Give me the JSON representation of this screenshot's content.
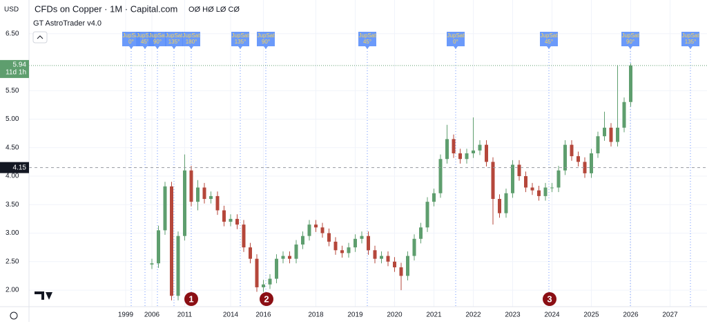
{
  "header": {
    "currency": "USD",
    "title": "CFDs on Copper · 1M · Capital.com",
    "ohlc": "OØ HØ LØ CØ",
    "indicator": "GT AstroTrader v4.0"
  },
  "chart_data": {
    "type": "candlestick",
    "categories": [
      "1999",
      null,
      null,
      null,
      "2006",
      null,
      null,
      null,
      null,
      "2011",
      null,
      null,
      null,
      null,
      null,
      null,
      "2014",
      null,
      null,
      null,
      null,
      "2016",
      null,
      null,
      null,
      null,
      null,
      null,
      null,
      "2018",
      null,
      null,
      null,
      null,
      null,
      "2019",
      null,
      null,
      null,
      null,
      null,
      "2020",
      null,
      null,
      null,
      null,
      null,
      "2021",
      null,
      null,
      null,
      null,
      null,
      "2022",
      null,
      null,
      null,
      null,
      null,
      "2023",
      null,
      null,
      null,
      null,
      null,
      "2024",
      null,
      null,
      null,
      null,
      null,
      "2025",
      null,
      null,
      null,
      null,
      null,
      "2026",
      null,
      null,
      null,
      null,
      null,
      "2027",
      null,
      null,
      null,
      null,
      null
    ],
    "open": [
      null,
      null,
      null,
      null,
      2.45,
      2.47,
      3.05,
      3.82,
      1.9,
      2.95,
      4.1,
      3.55,
      3.8,
      3.6,
      3.65,
      3.4,
      3.2,
      3.25,
      3.15,
      2.75,
      2.55,
      2.05,
      2.1,
      2.2,
      2.55,
      2.6,
      2.55,
      2.8,
      2.95,
      3.15,
      3.1,
      3.0,
      2.85,
      2.7,
      2.65,
      2.75,
      2.9,
      2.95,
      2.7,
      2.55,
      2.6,
      2.5,
      2.4,
      2.25,
      2.6,
      2.9,
      3.1,
      3.55,
      3.7,
      4.3,
      4.65,
      4.4,
      4.3,
      4.4,
      4.45,
      4.55,
      4.25,
      3.6,
      3.35,
      3.7,
      4.2,
      4.0,
      3.8,
      3.75,
      3.65,
      3.8,
      3.8,
      4.1,
      4.55,
      4.35,
      4.25,
      4.05,
      4.4,
      4.7,
      4.85,
      4.6,
      4.85,
      5.3,
      null,
      null,
      null,
      null,
      null,
      null,
      null,
      null,
      null,
      null,
      null
    ],
    "high": [
      null,
      null,
      null,
      null,
      2.55,
      3.13,
      3.9,
      3.9,
      3.03,
      4.38,
      4.18,
      3.93,
      3.88,
      3.73,
      3.73,
      3.48,
      3.33,
      3.33,
      3.23,
      2.83,
      2.63,
      2.18,
      2.28,
      2.63,
      2.68,
      2.68,
      2.88,
      3.03,
      3.23,
      3.23,
      3.18,
      3.08,
      2.93,
      2.78,
      2.83,
      2.98,
      3.03,
      3.03,
      2.78,
      2.68,
      2.68,
      2.58,
      2.48,
      2.68,
      2.98,
      3.18,
      3.63,
      3.78,
      4.38,
      4.9,
      4.73,
      4.48,
      4.48,
      5.03,
      4.63,
      4.63,
      4.33,
      3.68,
      3.78,
      4.28,
      4.28,
      4.08,
      3.88,
      3.83,
      3.88,
      3.88,
      4.18,
      4.63,
      4.63,
      4.43,
      4.33,
      4.48,
      4.78,
      5.13,
      4.93,
      5.95,
      5.38,
      5.98,
      null,
      null,
      null,
      null,
      null,
      null,
      null,
      null,
      null,
      null,
      null
    ],
    "low": [
      null,
      null,
      null,
      null,
      2.37,
      2.39,
      2.97,
      1.82,
      1.82,
      2.87,
      3.47,
      3.4,
      3.52,
      3.52,
      3.32,
      3.12,
      3.12,
      3.07,
      2.67,
      2.47,
      1.97,
      1.97,
      2.02,
      2.12,
      2.47,
      2.47,
      2.47,
      2.72,
      2.87,
      3.02,
      2.92,
      2.77,
      2.62,
      2.57,
      2.57,
      2.67,
      2.82,
      2.62,
      2.47,
      2.47,
      2.42,
      2.32,
      2.0,
      2.17,
      2.52,
      2.82,
      3.02,
      3.47,
      3.62,
      4.22,
      4.32,
      4.22,
      4.22,
      4.32,
      4.37,
      4.17,
      3.15,
      3.27,
      3.27,
      3.62,
      3.92,
      3.72,
      3.67,
      3.57,
      3.57,
      3.72,
      3.72,
      4.02,
      4.27,
      4.17,
      3.97,
      3.97,
      4.32,
      4.62,
      4.52,
      4.52,
      4.77,
      5.22,
      null,
      null,
      null,
      null,
      null,
      null,
      null,
      null,
      null,
      null,
      null
    ],
    "close": [
      null,
      null,
      null,
      null,
      2.47,
      3.05,
      3.82,
      1.9,
      2.95,
      4.1,
      3.55,
      3.8,
      3.6,
      3.65,
      3.4,
      3.2,
      3.25,
      3.15,
      2.75,
      2.55,
      2.05,
      2.1,
      2.2,
      2.55,
      2.6,
      2.55,
      2.8,
      2.95,
      3.15,
      3.1,
      3.0,
      2.85,
      2.7,
      2.65,
      2.75,
      2.9,
      2.95,
      2.7,
      2.55,
      2.6,
      2.5,
      2.4,
      2.25,
      2.6,
      2.9,
      3.1,
      3.55,
      3.7,
      4.3,
      4.65,
      4.4,
      4.3,
      4.4,
      4.45,
      4.55,
      4.25,
      3.6,
      3.35,
      3.7,
      4.2,
      4.0,
      3.8,
      3.75,
      3.65,
      3.8,
      3.8,
      4.1,
      4.55,
      4.35,
      4.25,
      4.05,
      4.4,
      4.7,
      4.85,
      4.6,
      4.85,
      5.3,
      5.94,
      null,
      null,
      null,
      null,
      null,
      null,
      null,
      null,
      null,
      null,
      null
    ],
    "up_color": "#5e9e6e",
    "down_color": "#b5473b",
    "ylim": [
      1.71,
      7.09
    ],
    "yticks": [
      {
        "value": 2,
        "label": "2.00"
      },
      {
        "value": 2.5,
        "label": "2.50"
      },
      {
        "value": 3,
        "label": "3.00"
      },
      {
        "value": 3.5,
        "label": "3.50"
      },
      {
        "value": 4,
        "label": "4.00"
      },
      {
        "value": 4.5,
        "label": "4.50"
      },
      {
        "value": 5,
        "label": "5.00"
      },
      {
        "value": 5.5,
        "label": "5.50"
      },
      {
        "value": 6.5,
        "label": "6.50"
      }
    ],
    "grid": true,
    "last_price": 5.94,
    "countdown": "11d 1h",
    "crosshair_price": 4.15,
    "markers": [
      {
        "name": "JupSat",
        "angle": "0°"
      },
      {
        "name": "JupSat",
        "angle": "45°"
      },
      {
        "name": "JupSat",
        "angle": "90°"
      },
      {
        "name": "JupSat",
        "angle": "135°"
      },
      {
        "name": "JupSat",
        "angle": "180°"
      },
      {
        "name": "JupSat",
        "angle": "135°"
      },
      {
        "name": "JupSat",
        "angle": "90°"
      },
      {
        "name": "JupSat",
        "angle": "45°"
      },
      {
        "name": "JupSat",
        "angle": "0°"
      },
      {
        "name": "JupSat",
        "angle": "45°"
      },
      {
        "name": "JupSat",
        "angle": "90°"
      },
      {
        "name": "JupSat",
        "angle": "135°"
      }
    ],
    "waves": [
      "1",
      "2",
      "3"
    ]
  }
}
